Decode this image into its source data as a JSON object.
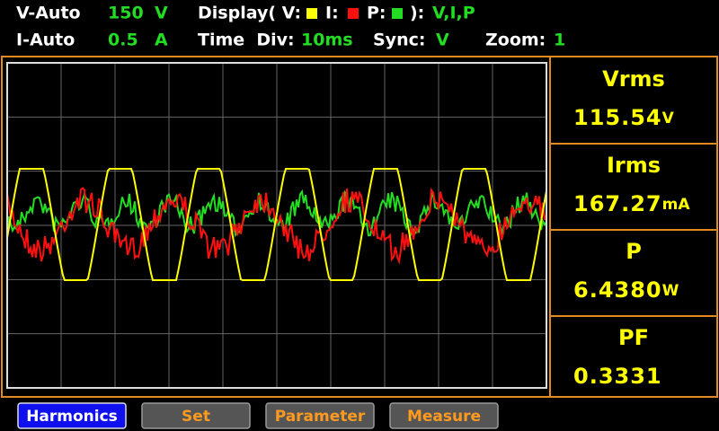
{
  "header": {
    "row1": {
      "v_mode": "V-Auto",
      "v_range": "150",
      "v_unit": "V",
      "display_label": "Display( V:",
      "i_label": "I:",
      "p_label": "P:",
      "display_close": "):",
      "display_value": "V,I,P"
    },
    "row2": {
      "i_mode": "I-Auto",
      "i_range": "0.5",
      "i_unit": "A",
      "time_div_label": "Time  Div:",
      "time_div_value": "10ms",
      "sync_label": "Sync:",
      "sync_value": "V",
      "zoom_label": "Zoom:",
      "zoom_value": "1"
    }
  },
  "readings": [
    {
      "label": "Vrms",
      "value": "115.54",
      "unit": "V"
    },
    {
      "label": "Irms",
      "value": "167.27",
      "unit": "mA"
    },
    {
      "label": "P",
      "value": "6.4380",
      "unit": "W"
    },
    {
      "label": "PF",
      "value": "0.3331"
    }
  ],
  "buttons": [
    "Harmonics",
    "Set",
    "Parameter",
    "Measure"
  ]
}
